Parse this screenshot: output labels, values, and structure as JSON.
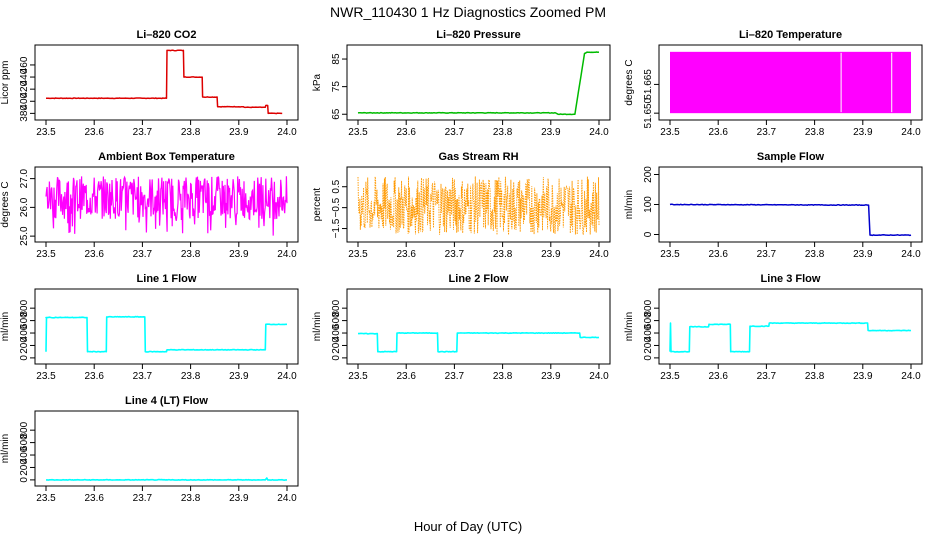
{
  "figure": {
    "title": "NWR_110430  1 Hz Diagnostics Zoomed PM",
    "xlabel": "Hour of Day (UTC)"
  },
  "chart_data": [
    {
      "id": "co2",
      "type": "line",
      "title": "Li–820 CO2",
      "ylabel": "Licor ppm",
      "color": "#dd0000",
      "xlim": [
        23.5,
        24.0
      ],
      "ylim": [
        374,
        488
      ],
      "xticks": [
        "23.5",
        "23.6",
        "23.7",
        "23.8",
        "23.9",
        "24.0"
      ],
      "yticks": [
        {
          "v": 380,
          "label": "380"
        },
        {
          "v": 400,
          "label": "400"
        },
        {
          "v": 420,
          "label": "420"
        },
        {
          "v": 440,
          "label": "440"
        },
        {
          "v": 460,
          "label": "460"
        }
      ],
      "series": [
        {
          "name": "CO2",
          "x": [
            23.5,
            23.7,
            23.75,
            23.751,
            23.785,
            23.786,
            23.824,
            23.825,
            23.855,
            23.856,
            23.91,
            23.911,
            23.955,
            23.956,
            23.96,
            23.961,
            23.99
          ],
          "y": [
            405,
            405,
            405,
            484,
            484,
            440,
            440,
            407,
            407,
            391,
            391,
            390,
            390,
            393,
            393,
            380,
            380
          ]
        }
      ]
    },
    {
      "id": "pressure",
      "type": "line",
      "title": "Li–820 Pressure",
      "ylabel": "kPa",
      "color": "#00bb00",
      "xlim": [
        23.5,
        24.0
      ],
      "ylim": [
        64,
        89
      ],
      "xticks": [
        "23.5",
        "23.6",
        "23.7",
        "23.8",
        "23.9",
        "24.0"
      ],
      "yticks": [
        {
          "v": 65,
          "label": "65"
        },
        {
          "v": 75,
          "label": "75"
        },
        {
          "v": 85,
          "label": "85"
        }
      ],
      "series": [
        {
          "name": "Pressure",
          "x": [
            23.5,
            23.91,
            23.915,
            23.95,
            23.96,
            23.97,
            23.975,
            24.0
          ],
          "y": [
            65.5,
            65.5,
            65,
            65,
            76,
            87,
            87.5,
            87.5
          ]
        }
      ]
    },
    {
      "id": "temp",
      "type": "line",
      "title": "Li–820 Temperature",
      "ylabel": "degrees C",
      "color": "#ff00ff",
      "xlim": [
        23.5,
        24.0
      ],
      "ylim": [
        51.648,
        51.684
      ],
      "xticks": [
        "23.5",
        "23.6",
        "23.7",
        "23.8",
        "23.9",
        "24.0"
      ],
      "yticks": [
        {
          "v": 51.65,
          "label": "51.650"
        },
        {
          "v": 51.665,
          "label": "51.665"
        }
      ],
      "series": [
        {
          "name": "Temperature",
          "x": [
            23.5,
            24.0
          ],
          "y_min": 51.65,
          "y_max": 51.682,
          "gaps_x": [
            23.855,
            23.96
          ]
        }
      ]
    },
    {
      "id": "ambient",
      "type": "line",
      "title": "Ambient Box Temperature",
      "ylabel": "degrees C",
      "color": "#ff00ff",
      "xlim": [
        23.5,
        24.0
      ],
      "ylim": [
        24.9,
        27.3
      ],
      "xticks": [
        "23.5",
        "23.6",
        "23.7",
        "23.8",
        "23.9",
        "24.0"
      ],
      "yticks": [
        {
          "v": 25.0,
          "label": "25.0"
        },
        {
          "v": 26.0,
          "label": "26.0"
        },
        {
          "v": 27.0,
          "label": "27.0"
        }
      ],
      "series": [
        {
          "name": "Ambient",
          "x": [
            23.5,
            24.0
          ],
          "y_mean": 26.3,
          "y_band": [
            25.6,
            27.1
          ],
          "y_spikes_min": 25.0
        }
      ]
    },
    {
      "id": "rh",
      "type": "scatter",
      "title": "Gas Stream RH",
      "ylabel": "percent",
      "color": "#ff9900",
      "xlim": [
        23.5,
        24.0
      ],
      "ylim": [
        -2.0,
        1.3
      ],
      "xticks": [
        "23.5",
        "23.6",
        "23.7",
        "23.8",
        "23.9",
        "24.0"
      ],
      "yticks": [
        {
          "v": -1.5,
          "label": "−1.5"
        },
        {
          "v": -0.5,
          "label": "−0.5"
        },
        {
          "v": 0.5,
          "label": "0.5"
        }
      ],
      "series": [
        {
          "name": "RH",
          "x": [
            23.5,
            24.0
          ],
          "y_range": [
            -1.8,
            1.0
          ]
        }
      ]
    },
    {
      "id": "sample",
      "type": "line",
      "title": "Sample Flow",
      "ylabel": "ml/min",
      "color": "#0000cc",
      "xlim": [
        23.5,
        24.0
      ],
      "ylim": [
        -15,
        215
      ],
      "xticks": [
        "23.5",
        "23.6",
        "23.7",
        "23.8",
        "23.9",
        "24.0"
      ],
      "yticks": [
        {
          "v": 0,
          "label": "0"
        },
        {
          "v": 100,
          "label": "100"
        },
        {
          "v": 200,
          "label": "200"
        }
      ],
      "series": [
        {
          "name": "Sample",
          "x": [
            23.5,
            23.91,
            23.912,
            23.915,
            24.0
          ],
          "y": [
            100,
            98,
            98,
            -2,
            -2
          ]
        }
      ]
    },
    {
      "id": "line1",
      "type": "line",
      "title": "Line 1 Flow",
      "ylabel": "ml/min",
      "color": "#00ffff",
      "xlim": [
        23.5,
        24.0
      ],
      "ylim": [
        -50,
        1060
      ],
      "xticks": [
        "23.5",
        "23.6",
        "23.7",
        "23.8",
        "23.9",
        "24.0"
      ],
      "yticks": [
        {
          "v": 0,
          "label": "0"
        },
        {
          "v": 200,
          "label": "200"
        },
        {
          "v": 400,
          "label": "400"
        },
        {
          "v": 600,
          "label": "600"
        },
        {
          "v": 800,
          "label": "800"
        }
      ],
      "series": [
        {
          "name": "Line 1",
          "x": [
            23.5,
            23.501,
            23.5,
            23.585,
            23.586,
            23.625,
            23.626,
            23.705,
            23.706,
            23.75,
            23.751,
            23.955,
            23.956,
            24.0
          ],
          "y": [
            100,
            650,
            650,
            650,
            100,
            100,
            660,
            660,
            100,
            100,
            130,
            130,
            540,
            540
          ]
        }
      ]
    },
    {
      "id": "line2",
      "type": "line",
      "title": "Line 2 Flow",
      "ylabel": "ml/min",
      "color": "#00ffff",
      "xlim": [
        23.5,
        24.0
      ],
      "ylim": [
        -50,
        1060
      ],
      "xticks": [
        "23.5",
        "23.6",
        "23.7",
        "23.8",
        "23.9",
        "24.0"
      ],
      "yticks": [
        {
          "v": 0,
          "label": "0"
        },
        {
          "v": 200,
          "label": "200"
        },
        {
          "v": 400,
          "label": "400"
        },
        {
          "v": 600,
          "label": "600"
        },
        {
          "v": 800,
          "label": "800"
        }
      ],
      "series": [
        {
          "name": "Line 2",
          "x": [
            23.5,
            23.54,
            23.541,
            23.58,
            23.581,
            23.665,
            23.666,
            23.705,
            23.706,
            23.96,
            23.961,
            24.0
          ],
          "y": [
            390,
            390,
            100,
            100,
            400,
            400,
            100,
            100,
            400,
            400,
            330,
            330
          ]
        }
      ]
    },
    {
      "id": "line3",
      "type": "line",
      "title": "Line 3 Flow",
      "ylabel": "ml/min",
      "color": "#00ffff",
      "xlim": [
        23.5,
        24.0
      ],
      "ylim": [
        -50,
        1060
      ],
      "xticks": [
        "23.5",
        "23.6",
        "23.7",
        "23.8",
        "23.9",
        "24.0"
      ],
      "yticks": [
        {
          "v": 0,
          "label": "0"
        },
        {
          "v": 200,
          "label": "200"
        },
        {
          "v": 400,
          "label": "400"
        },
        {
          "v": 600,
          "label": "600"
        },
        {
          "v": 800,
          "label": "800"
        }
      ],
      "series": [
        {
          "name": "Line 3",
          "x": [
            23.5,
            23.501,
            23.502,
            23.54,
            23.541,
            23.58,
            23.581,
            23.625,
            23.626,
            23.665,
            23.666,
            23.705,
            23.706,
            23.91,
            23.911,
            24.0
          ],
          "y": [
            100,
            560,
            100,
            100,
            500,
            500,
            540,
            540,
            100,
            100,
            510,
            510,
            560,
            560,
            440,
            440
          ]
        }
      ]
    },
    {
      "id": "line4",
      "type": "line",
      "title": "Line 4 (LT) Flow",
      "ylabel": "ml/min",
      "color": "#00ffff",
      "xlim": [
        23.5,
        24.0
      ],
      "ylim": [
        -50,
        1060
      ],
      "xticks": [
        "23.5",
        "23.6",
        "23.7",
        "23.8",
        "23.9",
        "24.0"
      ],
      "yticks": [
        {
          "v": 0,
          "label": "0"
        },
        {
          "v": 200,
          "label": "200"
        },
        {
          "v": 400,
          "label": "400"
        },
        {
          "v": 600,
          "label": "600"
        },
        {
          "v": 800,
          "label": "800"
        }
      ],
      "series": [
        {
          "name": "Line 4",
          "x": [
            23.5,
            23.955,
            23.958,
            23.96,
            24.0
          ],
          "y": [
            0,
            0,
            30,
            0,
            0
          ]
        }
      ]
    }
  ]
}
